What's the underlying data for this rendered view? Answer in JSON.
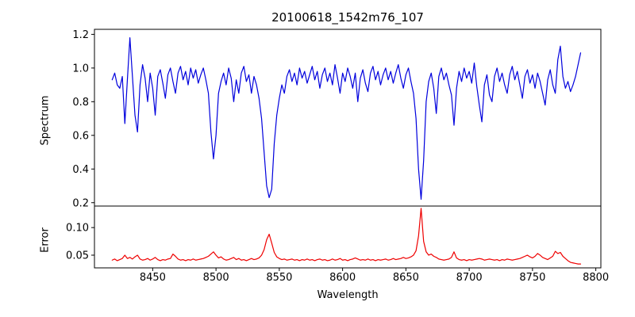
{
  "figure": {
    "background": "#ffffff"
  },
  "chart_data": {
    "type": "line",
    "title": "20100618_1542m76_107",
    "xlabel": "Wavelength",
    "grid": false,
    "legend": false,
    "xlim": [
      8404,
      8804
    ],
    "xticks": [
      8450,
      8500,
      8550,
      8600,
      8650,
      8700,
      8750,
      8800
    ],
    "xtick_labels": [
      "8450",
      "8500",
      "8550",
      "8600",
      "8650",
      "8700",
      "8750",
      "8800"
    ],
    "x_start": 8418,
    "x_step": 2,
    "panels": [
      {
        "name": "spectrum",
        "ylabel": "Spectrum",
        "color": "#0000dd",
        "ylim": [
          0.18,
          1.23
        ],
        "yticks": [
          0.2,
          0.4,
          0.6,
          0.8,
          1.0,
          1.2
        ],
        "ytick_labels": [
          "0.2",
          "0.4",
          "0.6",
          "0.8",
          "1.0",
          "1.2"
        ],
        "values": [
          0.93,
          0.97,
          0.9,
          0.88,
          0.95,
          0.67,
          0.93,
          1.18,
          0.95,
          0.72,
          0.62,
          0.9,
          1.02,
          0.94,
          0.8,
          0.97,
          0.88,
          0.72,
          0.95,
          0.99,
          0.91,
          0.82,
          0.96,
          1.0,
          0.92,
          0.85,
          0.97,
          1.01,
          0.93,
          0.98,
          0.9,
          1.0,
          0.94,
          0.99,
          0.91,
          0.96,
          1.0,
          0.93,
          0.85,
          0.62,
          0.46,
          0.6,
          0.85,
          0.92,
          0.97,
          0.9,
          1.0,
          0.94,
          0.8,
          0.93,
          0.85,
          0.97,
          1.01,
          0.92,
          0.96,
          0.85,
          0.95,
          0.9,
          0.82,
          0.7,
          0.5,
          0.3,
          0.23,
          0.28,
          0.55,
          0.72,
          0.82,
          0.9,
          0.85,
          0.95,
          0.99,
          0.92,
          0.97,
          0.9,
          1.0,
          0.94,
          0.98,
          0.91,
          0.96,
          1.01,
          0.93,
          0.98,
          0.88,
          0.96,
          1.0,
          0.92,
          0.97,
          0.9,
          1.02,
          0.94,
          0.85,
          0.97,
          0.92,
          1.0,
          0.95,
          0.88,
          0.97,
          0.8,
          0.94,
          0.99,
          0.91,
          0.86,
          0.97,
          1.01,
          0.93,
          0.98,
          0.9,
          0.96,
          1.0,
          0.93,
          0.98,
          0.91,
          0.97,
          1.02,
          0.94,
          0.88,
          0.96,
          1.0,
          0.92,
          0.85,
          0.7,
          0.4,
          0.22,
          0.45,
          0.8,
          0.92,
          0.97,
          0.88,
          0.73,
          0.95,
          1.0,
          0.93,
          0.97,
          0.9,
          0.84,
          0.66,
          0.88,
          0.98,
          0.92,
          1.0,
          0.94,
          0.98,
          0.91,
          1.03,
          0.89,
          0.78,
          0.68,
          0.9,
          0.96,
          0.84,
          0.8,
          0.95,
          1.0,
          0.92,
          0.97,
          0.9,
          0.85,
          0.96,
          1.01,
          0.93,
          0.98,
          0.9,
          0.82,
          0.95,
          0.99,
          0.91,
          0.96,
          0.88,
          0.97,
          0.92,
          0.85,
          0.78,
          0.93,
          0.99,
          0.9,
          0.85,
          1.05,
          1.13,
          0.95,
          0.88,
          0.92,
          0.86,
          0.9,
          0.95,
          1.02,
          1.09
        ]
      },
      {
        "name": "error",
        "ylabel": "Error",
        "color": "#ee0000",
        "ylim": [
          0.027,
          0.139
        ],
        "yticks": [
          0.05,
          0.1
        ],
        "ytick_labels": [
          "0.05",
          "0.10"
        ],
        "values": [
          0.041,
          0.043,
          0.04,
          0.042,
          0.044,
          0.05,
          0.044,
          0.046,
          0.043,
          0.047,
          0.05,
          0.043,
          0.041,
          0.042,
          0.044,
          0.041,
          0.043,
          0.046,
          0.042,
          0.04,
          0.042,
          0.041,
          0.043,
          0.044,
          0.052,
          0.048,
          0.043,
          0.041,
          0.042,
          0.04,
          0.042,
          0.041,
          0.043,
          0.041,
          0.042,
          0.043,
          0.044,
          0.046,
          0.048,
          0.052,
          0.056,
          0.05,
          0.045,
          0.047,
          0.043,
          0.041,
          0.042,
          0.044,
          0.046,
          0.042,
          0.044,
          0.041,
          0.042,
          0.04,
          0.042,
          0.044,
          0.042,
          0.043,
          0.045,
          0.05,
          0.06,
          0.078,
          0.088,
          0.072,
          0.055,
          0.047,
          0.044,
          0.042,
          0.043,
          0.041,
          0.042,
          0.043,
          0.041,
          0.042,
          0.04,
          0.042,
          0.041,
          0.043,
          0.041,
          0.042,
          0.04,
          0.042,
          0.043,
          0.041,
          0.042,
          0.04,
          0.041,
          0.043,
          0.041,
          0.042,
          0.044,
          0.041,
          0.042,
          0.04,
          0.042,
          0.043,
          0.045,
          0.043,
          0.041,
          0.042,
          0.041,
          0.043,
          0.041,
          0.042,
          0.04,
          0.042,
          0.041,
          0.042,
          0.043,
          0.041,
          0.042,
          0.044,
          0.042,
          0.043,
          0.044,
          0.046,
          0.044,
          0.045,
          0.047,
          0.05,
          0.058,
          0.085,
          0.135,
          0.075,
          0.056,
          0.05,
          0.052,
          0.048,
          0.046,
          0.043,
          0.042,
          0.041,
          0.042,
          0.043,
          0.046,
          0.056,
          0.045,
          0.042,
          0.041,
          0.042,
          0.04,
          0.042,
          0.041,
          0.042,
          0.043,
          0.044,
          0.043,
          0.041,
          0.042,
          0.043,
          0.042,
          0.041,
          0.042,
          0.04,
          0.042,
          0.041,
          0.043,
          0.042,
          0.041,
          0.042,
          0.043,
          0.044,
          0.046,
          0.048,
          0.05,
          0.047,
          0.045,
          0.048,
          0.053,
          0.05,
          0.046,
          0.044,
          0.042,
          0.045,
          0.048,
          0.057,
          0.053,
          0.055,
          0.048,
          0.044,
          0.04,
          0.037,
          0.036,
          0.035,
          0.034,
          0.034
        ]
      }
    ]
  }
}
